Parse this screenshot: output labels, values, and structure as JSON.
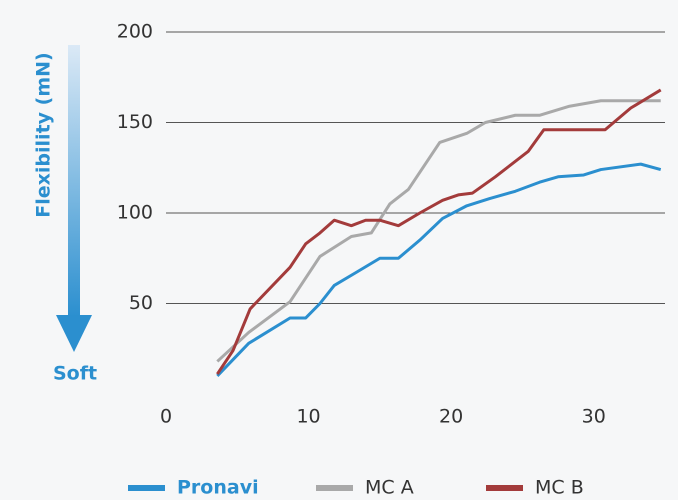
{
  "chart_data": {
    "type": "line",
    "ylabel": "Flexibility (mN)",
    "annotation": "Soft",
    "xlim": [
      0,
      35
    ],
    "ylim": [
      0,
      200
    ],
    "xticks": [
      0,
      10,
      20,
      30
    ],
    "yticks": [
      50,
      100,
      150,
      200
    ],
    "grid": true,
    "legend": "bottom",
    "series": [
      {
        "name": "Pronavi",
        "color": "#2b8fcf",
        "x": [
          3.6,
          5.8,
          8.7,
          9.8,
          10.8,
          11.8,
          13.3,
          15.0,
          16.3,
          17.8,
          19.4,
          21.1,
          22.7,
          24.5,
          26.2,
          27.5,
          29.3,
          30.5,
          33.3,
          34.7
        ],
        "values": [
          10,
          28,
          42,
          42,
          50,
          60,
          67,
          75,
          75,
          85,
          97,
          104,
          108,
          112,
          117,
          120,
          121,
          124,
          127,
          124
        ]
      },
      {
        "name": "MC A",
        "color": "#a9a9a9",
        "x": [
          3.6,
          5.8,
          8.7,
          10.8,
          11.8,
          13.0,
          14.4,
          15.7,
          17.0,
          19.2,
          21.1,
          22.4,
          24.5,
          26.2,
          28.3,
          30.5,
          31.9,
          34.7
        ],
        "values": [
          18,
          34,
          51,
          76,
          81,
          87,
          89,
          105,
          113,
          139,
          144,
          150,
          154,
          154,
          159,
          162,
          162,
          162
        ]
      },
      {
        "name": "MC B",
        "color": "#a33b3b",
        "x": [
          3.6,
          4.7,
          5.9,
          8.7,
          9.8,
          10.8,
          11.8,
          13.0,
          14.0,
          15.0,
          16.3,
          17.8,
          19.4,
          20.5,
          21.5,
          23.1,
          25.4,
          26.5,
          28.4,
          30.8,
          32.6,
          34.7
        ],
        "values": [
          11,
          24,
          47,
          70,
          83,
          89,
          96,
          93,
          96,
          96,
          93,
          100,
          107,
          110,
          111,
          120,
          134,
          146,
          146,
          146,
          158,
          168
        ]
      }
    ]
  }
}
